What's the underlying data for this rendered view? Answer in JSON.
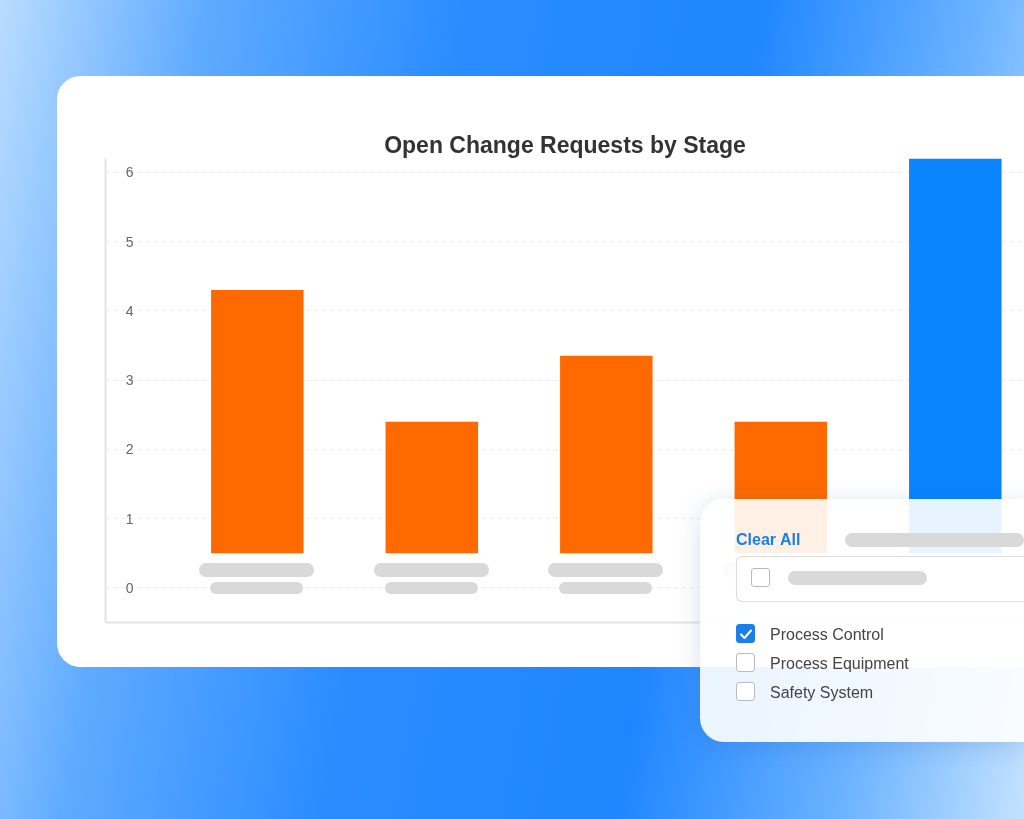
{
  "chart_data": {
    "type": "bar",
    "title": "Open Change Requests by Stage",
    "categories": [
      null,
      null,
      null,
      null,
      null
    ],
    "values": [
      3.8,
      1.9,
      2.85,
      1.9,
      5.7
    ],
    "base": [
      0.5,
      0.5,
      0.5,
      0.5,
      0.5
    ],
    "colors": [
      "#ff6a00",
      "#ff6a00",
      "#ff6a00",
      "#ff6a00",
      "#0a84ff"
    ],
    "ylim": [
      -0.5,
      6.2
    ],
    "yticks": [
      0,
      1,
      2,
      3,
      4,
      5,
      6
    ],
    "grid": "y",
    "annotations": [
      "Clear All",
      "Process Control",
      "Process Equipment",
      "Safety System"
    ]
  }
}
